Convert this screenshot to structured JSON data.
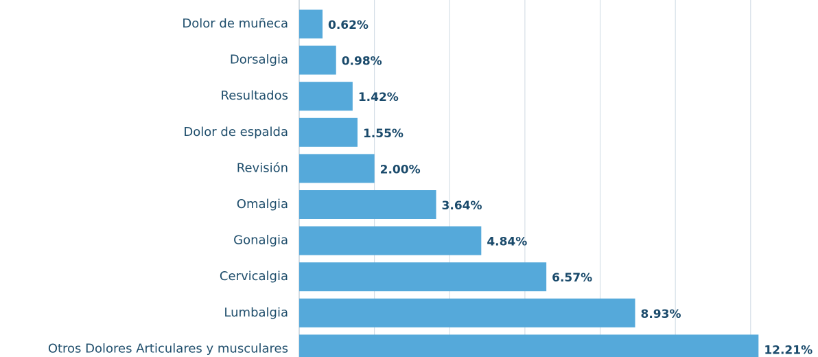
{
  "chart_data": {
    "type": "barh",
    "categories": [
      "Dolor de muñeca",
      "Dorsalgia",
      "Resultados",
      "Dolor de espalda",
      "Revisión",
      "Omalgia",
      "Gonalgia",
      "Cervicalgia",
      "Lumbalgia",
      "Otros Dolores Articulares y musculares"
    ],
    "values": [
      0.62,
      0.98,
      1.42,
      1.55,
      2.0,
      3.64,
      4.84,
      6.57,
      8.93,
      12.21
    ],
    "value_labels": [
      "0.62%",
      "0.98%",
      "1.42%",
      "1.55%",
      "2.00%",
      "3.64%",
      "4.84%",
      "6.57%",
      "8.93%",
      "12.21%"
    ],
    "color": "#55a9da",
    "xlim": [
      0,
      13.7
    ],
    "xticks": [
      0,
      2,
      4,
      6,
      8,
      10,
      12
    ],
    "grid": true
  }
}
